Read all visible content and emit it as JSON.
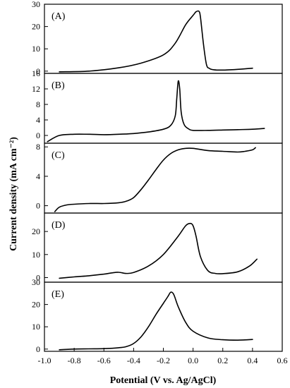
{
  "chart_data": {
    "type": "line",
    "xlabel": "Potential (V vs. Ag/AgCl)",
    "ylabel": "Current density (mA cm⁻²)",
    "xlim": [
      -1.0,
      0.6
    ],
    "x_ticks": [
      "-1.0",
      "-0.8",
      "-0.6",
      "-0.4",
      "-0.2",
      "0.0",
      "0.2",
      "0.4",
      "0.6"
    ],
    "grid": false,
    "panels": [
      {
        "label": "(A)",
        "ylim": [
          -1,
          30
        ],
        "y_ticks": [
          0,
          10,
          20,
          30
        ],
        "series": [
          {
            "x": [
              -0.9,
              -0.7,
              -0.5,
              -0.35,
              -0.2,
              -0.12,
              -0.05,
              0.0,
              0.02,
              0.04,
              0.05,
              0.07,
              0.09,
              0.11,
              0.14,
              0.2,
              0.3,
              0.4
            ],
            "y": [
              -0.3,
              0.0,
              1.5,
              3.6,
              7.3,
              12.5,
              20.8,
              25.0,
              26.6,
              26.8,
              24.0,
              12.0,
              3.0,
              1.2,
              0.6,
              0.5,
              0.8,
              1.3
            ]
          }
        ]
      },
      {
        "label": "(B)",
        "ylim": [
          -2,
          16
        ],
        "y_ticks": [
          0,
          4,
          8,
          12,
          16
        ],
        "series": [
          {
            "x": [
              -0.98,
              -0.9,
              -0.8,
              -0.7,
              -0.6,
              -0.5,
              -0.4,
              -0.3,
              -0.2,
              -0.15,
              -0.12,
              -0.11,
              -0.1,
              -0.09,
              -0.08,
              -0.06,
              -0.03,
              0.0,
              0.1,
              0.2,
              0.3,
              0.4,
              0.48
            ],
            "y": [
              -1.6,
              0.0,
              0.3,
              0.3,
              0.2,
              0.3,
              0.5,
              0.9,
              1.6,
              2.6,
              5.0,
              9.5,
              14.0,
              12.0,
              6.0,
              2.8,
              1.7,
              1.3,
              1.3,
              1.4,
              1.5,
              1.6,
              1.8
            ]
          }
        ]
      },
      {
        "label": "(C)",
        "ylim": [
          -1,
          8.5
        ],
        "y_ticks": [
          0,
          4,
          8
        ],
        "series": [
          {
            "x": [
              -0.93,
              -0.9,
              -0.85,
              -0.8,
              -0.7,
              -0.6,
              -0.5,
              -0.45,
              -0.4,
              -0.35,
              -0.3,
              -0.25,
              -0.2,
              -0.15,
              -0.1,
              -0.05,
              0.0,
              0.1,
              0.2,
              0.3,
              0.35,
              0.4,
              0.42
            ],
            "y": [
              -0.8,
              -0.2,
              0.1,
              0.2,
              0.3,
              0.3,
              0.4,
              0.6,
              1.1,
              2.2,
              3.5,
              4.9,
              6.2,
              7.1,
              7.6,
              7.8,
              7.8,
              7.5,
              7.4,
              7.3,
              7.4,
              7.6,
              7.9
            ]
          }
        ]
      },
      {
        "label": "(D)",
        "ylim": [
          -2,
          28
        ],
        "y_ticks": [
          0,
          10,
          20
        ],
        "series": [
          {
            "x": [
              -0.9,
              -0.8,
              -0.7,
              -0.6,
              -0.55,
              -0.5,
              -0.45,
              -0.4,
              -0.3,
              -0.2,
              -0.1,
              -0.05,
              -0.02,
              0.0,
              0.02,
              0.05,
              0.1,
              0.15,
              0.2,
              0.3,
              0.38,
              0.43
            ],
            "y": [
              -0.3,
              0.3,
              0.8,
              1.5,
              2.0,
              2.3,
              1.8,
              2.2,
              5.0,
              10.0,
              18.0,
              22.5,
              23.5,
              22.5,
              18.0,
              9.0,
              3.0,
              1.8,
              1.7,
              2.5,
              5.0,
              8.0
            ]
          }
        ]
      },
      {
        "label": "(E)",
        "ylim": [
          -1,
          30
        ],
        "y_ticks": [
          0,
          10,
          20,
          30
        ],
        "series": [
          {
            "x": [
              -0.9,
              -0.8,
              -0.7,
              -0.6,
              -0.5,
              -0.45,
              -0.4,
              -0.35,
              -0.3,
              -0.25,
              -0.2,
              -0.17,
              -0.15,
              -0.13,
              -0.1,
              -0.05,
              0.0,
              0.1,
              0.2,
              0.3,
              0.4
            ],
            "y": [
              -0.3,
              0.0,
              0.1,
              0.2,
              0.6,
              1.1,
              2.5,
              5.5,
              10.0,
              15.5,
              20.5,
              23.5,
              25.5,
              24.5,
              19.0,
              12.0,
              8.0,
              5.0,
              4.2,
              4.0,
              4.3
            ]
          }
        ]
      }
    ]
  }
}
